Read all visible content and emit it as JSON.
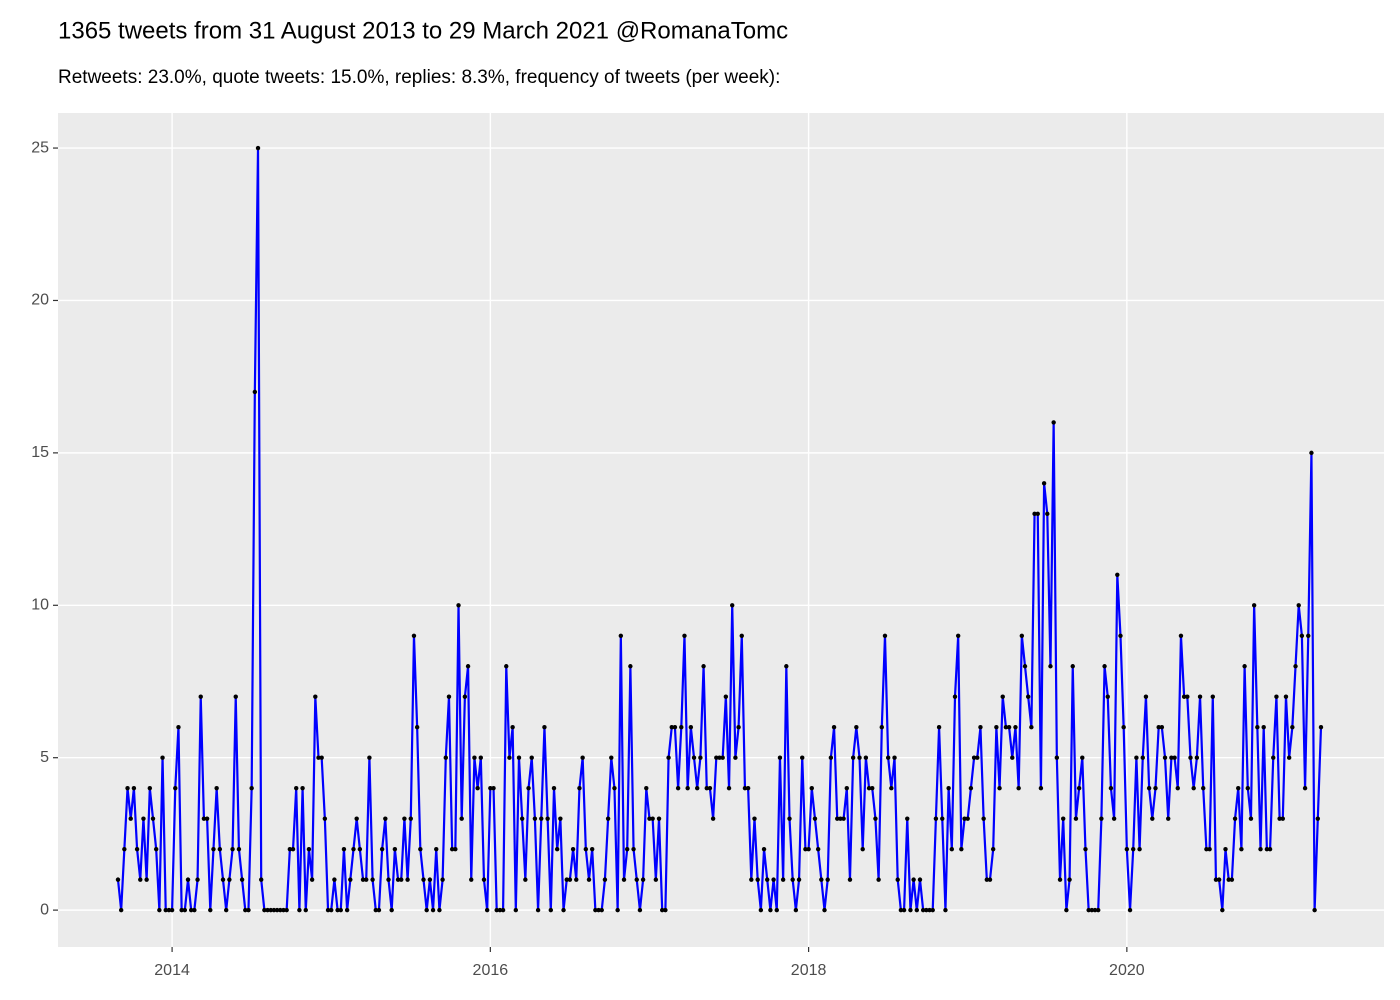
{
  "chart_data": {
    "type": "line",
    "title": "1365 tweets from 31 August 2013 to 29 March 2021 @RomanaTomc",
    "subtitle": "Retweets: 23.0%, quote tweets: 15.0%, replies: 8.3%, frequency of tweets (per week):",
    "color": "#0000ff",
    "marker_color": "#000000",
    "grid": true,
    "xlim": [
      2013.283,
      2021.616
    ],
    "xticks": [
      2014,
      2016,
      2018,
      2020
    ],
    "ylim": [
      -1.21,
      26.15
    ],
    "yticks": [
      0,
      5,
      10,
      15,
      20,
      25
    ],
    "x": [
      2013.66,
      2013.68,
      2013.7,
      2013.72,
      2013.74,
      2013.76,
      2013.78,
      2013.8,
      2013.82,
      2013.84,
      2013.86,
      2013.88,
      2013.9,
      2013.92,
      2013.94,
      2013.96,
      2013.98,
      2014.0,
      2014.02,
      2014.04,
      2014.06,
      2014.08,
      2014.1,
      2014.12,
      2014.14,
      2014.16,
      2014.18,
      2014.2,
      2014.22,
      2014.24,
      2014.26,
      2014.28,
      2014.3,
      2014.32,
      2014.34,
      2014.36,
      2014.38,
      2014.4,
      2014.42,
      2014.44,
      2014.46,
      2014.48,
      2014.5,
      2014.52,
      2014.54,
      2014.56,
      2014.58,
      2014.6,
      2014.62,
      2014.64,
      2014.66,
      2014.68,
      2014.7,
      2014.72,
      2014.74,
      2014.76,
      2014.78,
      2014.8,
      2014.82,
      2014.84,
      2014.86,
      2014.88,
      2014.9,
      2014.92,
      2014.94,
      2014.96,
      2014.98,
      2015.0,
      2015.02,
      2015.04,
      2015.06,
      2015.08,
      2015.1,
      2015.12,
      2015.14,
      2015.16,
      2015.18,
      2015.2,
      2015.22,
      2015.24,
      2015.26,
      2015.28,
      2015.3,
      2015.32,
      2015.34,
      2015.36,
      2015.38,
      2015.4,
      2015.42,
      2015.44,
      2015.46,
      2015.48,
      2015.5,
      2015.52,
      2015.54,
      2015.56,
      2015.58,
      2015.6,
      2015.62,
      2015.64,
      2015.66,
      2015.68,
      2015.7,
      2015.72,
      2015.74,
      2015.76,
      2015.78,
      2015.8,
      2015.82,
      2015.84,
      2015.86,
      2015.88,
      2015.9,
      2015.92,
      2015.94,
      2015.96,
      2015.98,
      2016.0,
      2016.02,
      2016.04,
      2016.06,
      2016.08,
      2016.1,
      2016.12,
      2016.14,
      2016.16,
      2016.18,
      2016.2,
      2016.22,
      2016.24,
      2016.26,
      2016.28,
      2016.3,
      2016.32,
      2016.34,
      2016.36,
      2016.38,
      2016.4,
      2016.42,
      2016.44,
      2016.46,
      2016.48,
      2016.5,
      2016.52,
      2016.54,
      2016.56,
      2016.58,
      2016.6,
      2016.62,
      2016.64,
      2016.66,
      2016.68,
      2016.7,
      2016.72,
      2016.74,
      2016.76,
      2016.78,
      2016.8,
      2016.82,
      2016.84,
      2016.86,
      2016.88,
      2016.9,
      2016.92,
      2016.94,
      2016.96,
      2016.98,
      2017.0,
      2017.02,
      2017.04,
      2017.06,
      2017.08,
      2017.1,
      2017.12,
      2017.14,
      2017.16,
      2017.18,
      2017.2,
      2017.22,
      2017.24,
      2017.26,
      2017.28,
      2017.3,
      2017.32,
      2017.34,
      2017.36,
      2017.38,
      2017.4,
      2017.42,
      2017.44,
      2017.46,
      2017.48,
      2017.5,
      2017.52,
      2017.54,
      2017.56,
      2017.58,
      2017.6,
      2017.62,
      2017.64,
      2017.66,
      2017.68,
      2017.7,
      2017.72,
      2017.74,
      2017.76,
      2017.78,
      2017.8,
      2017.82,
      2017.84,
      2017.86,
      2017.88,
      2017.9,
      2017.92,
      2017.94,
      2017.96,
      2017.98,
      2018.0,
      2018.02,
      2018.04,
      2018.06,
      2018.08,
      2018.1,
      2018.12,
      2018.14,
      2018.16,
      2018.18,
      2018.2,
      2018.22,
      2018.24,
      2018.26,
      2018.28,
      2018.3,
      2018.32,
      2018.34,
      2018.36,
      2018.38,
      2018.4,
      2018.42,
      2018.44,
      2018.46,
      2018.48,
      2018.5,
      2018.52,
      2018.54,
      2018.56,
      2018.58,
      2018.6,
      2018.62,
      2018.64,
      2018.66,
      2018.68,
      2018.7,
      2018.72,
      2018.74,
      2018.76,
      2018.78,
      2018.8,
      2018.82,
      2018.84,
      2018.86,
      2018.88,
      2018.9,
      2018.92,
      2018.94,
      2018.96,
      2018.98,
      2019.0,
      2019.02,
      2019.04,
      2019.06,
      2019.08,
      2019.1,
      2019.12,
      2019.14,
      2019.16,
      2019.18,
      2019.2,
      2019.22,
      2019.24,
      2019.26,
      2019.28,
      2019.3,
      2019.32,
      2019.34,
      2019.36,
      2019.38,
      2019.4,
      2019.42,
      2019.44,
      2019.46,
      2019.48,
      2019.5,
      2019.52,
      2019.54,
      2019.56,
      2019.58,
      2019.6,
      2019.62,
      2019.64,
      2019.66,
      2019.68,
      2019.7,
      2019.72,
      2019.74,
      2019.76,
      2019.78,
      2019.8,
      2019.82,
      2019.84,
      2019.86,
      2019.88,
      2019.9,
      2019.92,
      2019.94,
      2019.96,
      2019.98,
      2020.0,
      2020.02,
      2020.04,
      2020.06,
      2020.08,
      2020.1,
      2020.12,
      2020.14,
      2020.16,
      2020.18,
      2020.2,
      2020.22,
      2020.24,
      2020.26,
      2020.28,
      2020.3,
      2020.32,
      2020.34,
      2020.36,
      2020.38,
      2020.4,
      2020.42,
      2020.44,
      2020.46,
      2020.48,
      2020.5,
      2020.52,
      2020.54,
      2020.56,
      2020.58,
      2020.6,
      2020.62,
      2020.64,
      2020.66,
      2020.68,
      2020.7,
      2020.72,
      2020.74,
      2020.76,
      2020.78,
      2020.8,
      2020.82,
      2020.84,
      2020.86,
      2020.88,
      2020.9,
      2020.92,
      2020.94,
      2020.96,
      2020.98,
      2021.0,
      2021.02,
      2021.04,
      2021.06,
      2021.08,
      2021.1,
      2021.12,
      2021.14,
      2021.16,
      2021.18,
      2021.2,
      2021.22
    ],
    "values": [
      1,
      0,
      2,
      4,
      3,
      4,
      2,
      1,
      3,
      1,
      4,
      3,
      2,
      0,
      5,
      0,
      0,
      0,
      4,
      6,
      0,
      0,
      1,
      0,
      0,
      1,
      7,
      3,
      3,
      0,
      2,
      4,
      2,
      1,
      0,
      1,
      2,
      7,
      2,
      1,
      0,
      0,
      4,
      17,
      25,
      1,
      0,
      0,
      0,
      0,
      0,
      0,
      0,
      0,
      2,
      2,
      4,
      0,
      4,
      0,
      2,
      1,
      7,
      5,
      5,
      3,
      0,
      0,
      1,
      0,
      0,
      2,
      0,
      1,
      2,
      3,
      2,
      1,
      1,
      5,
      1,
      0,
      0,
      2,
      3,
      1,
      0,
      2,
      1,
      1,
      3,
      1,
      3,
      9,
      6,
      2,
      1,
      0,
      1,
      0,
      2,
      0,
      1,
      5,
      7,
      2,
      2,
      10,
      3,
      7,
      8,
      1,
      5,
      4,
      5,
      1,
      0,
      4,
      4,
      0,
      0,
      0,
      8,
      5,
      6,
      0,
      5,
      3,
      1,
      4,
      5,
      3,
      0,
      3,
      6,
      3,
      0,
      4,
      2,
      3,
      0,
      1,
      1,
      2,
      1,
      4,
      5,
      2,
      1,
      2,
      0,
      0,
      0,
      1,
      3,
      5,
      4,
      0,
      9,
      1,
      2,
      8,
      2,
      1,
      0,
      1,
      4,
      3,
      3,
      1,
      3,
      0,
      0,
      5,
      6,
      6,
      4,
      6,
      9,
      4,
      6,
      5,
      4,
      5,
      8,
      4,
      4,
      3,
      5,
      5,
      5,
      7,
      4,
      10,
      5,
      6,
      9,
      4,
      4,
      1,
      3,
      1,
      0,
      2,
      1,
      0,
      1,
      0,
      5,
      1,
      8,
      3,
      1,
      0,
      1,
      5,
      2,
      2,
      4,
      3,
      2,
      1,
      0,
      1,
      5,
      6,
      3,
      3,
      3,
      4,
      1,
      5,
      6,
      5,
      2,
      5,
      4,
      4,
      3,
      1,
      6,
      9,
      5,
      4,
      5,
      1,
      0,
      0,
      3,
      0,
      1,
      0,
      1,
      0,
      0,
      0,
      0,
      3,
      6,
      3,
      0,
      4,
      2,
      7,
      9,
      2,
      3,
      3,
      4,
      5,
      5,
      6,
      3,
      1,
      1,
      2,
      6,
      4,
      7,
      6,
      6,
      5,
      6,
      4,
      9,
      8,
      7,
      6,
      13,
      13,
      4,
      14,
      13,
      8,
      16,
      5,
      1,
      3,
      0,
      1,
      8,
      3,
      4,
      5,
      2,
      0,
      0,
      0,
      0,
      3,
      8,
      7,
      4,
      3,
      11,
      9,
      6,
      2,
      0,
      2,
      5,
      2,
      5,
      7,
      4,
      3,
      4,
      6,
      6,
      5,
      3,
      5,
      5,
      4,
      9,
      7,
      7,
      5,
      4,
      5,
      7,
      4,
      2,
      2,
      7,
      1,
      1,
      0,
      2,
      1,
      1,
      3,
      4,
      2,
      8,
      4,
      3,
      10,
      6,
      2,
      6,
      2,
      2,
      5,
      7,
      3,
      3,
      7,
      5,
      6,
      8,
      10,
      9,
      4,
      9,
      15,
      0,
      3,
      6
    ]
  }
}
